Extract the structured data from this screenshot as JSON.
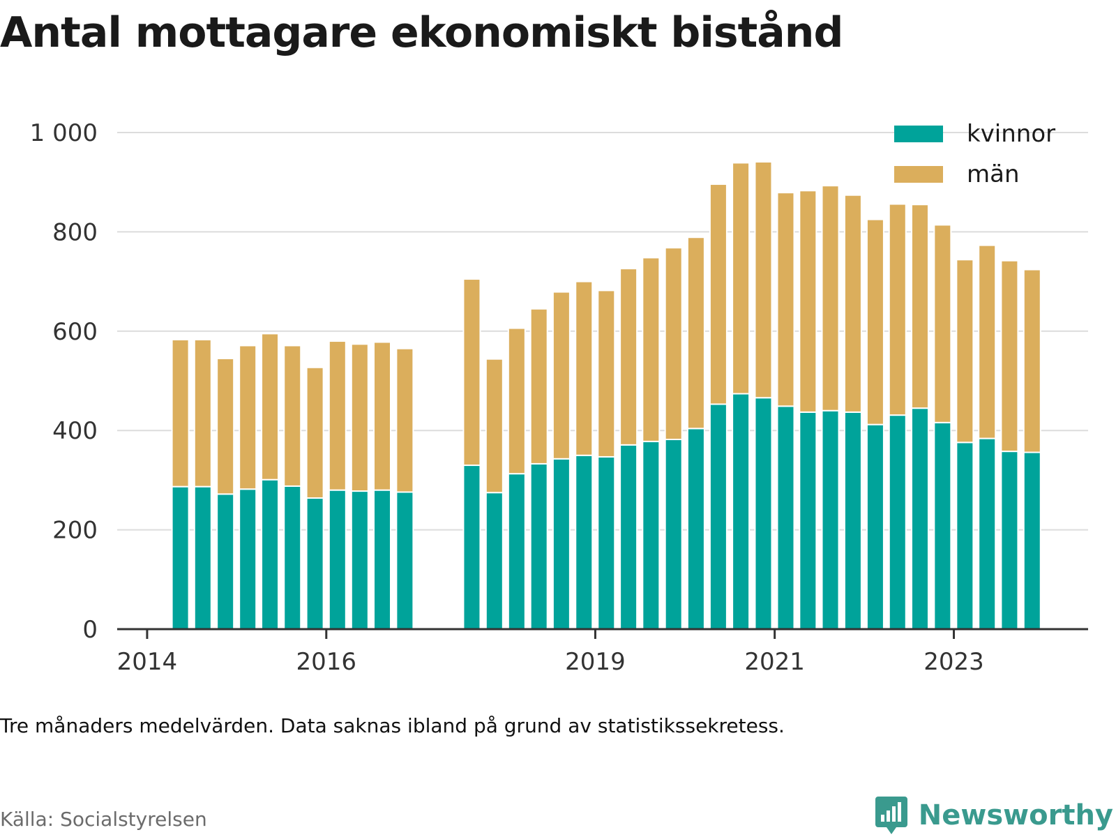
{
  "title": "Antal mottagare ekonomiskt bistånd",
  "note": "Tre månaders medelvärden. Data saknas ibland på grund av statistikssekretess.",
  "source": "Källa: Socialstyrelsen",
  "brand": "Newsworthy",
  "colors": {
    "kvinnor": "#00a39a",
    "man": "#dbae5c",
    "grid": "#dcdcdc",
    "axis": "#333333"
  },
  "chart_data": {
    "type": "bar",
    "stacked": true,
    "title": "Antal mottagare ekonomiskt bistånd",
    "ylim": [
      0,
      1000
    ],
    "yticks": [
      0,
      200,
      400,
      600,
      800,
      1000
    ],
    "ytick_labels": [
      "0",
      "200",
      "400",
      "600",
      "800",
      "1 000"
    ],
    "xlim": [
      "2013-09-01",
      "2024-07-01"
    ],
    "xticks": [
      {
        "date": "2014-01-01",
        "label": "2014"
      },
      {
        "date": "2016-01-01",
        "label": "2016"
      },
      {
        "date": "2019-01-01",
        "label": "2019"
      },
      {
        "date": "2021-01-01",
        "label": "2021"
      },
      {
        "date": "2023-01-01",
        "label": "2023"
      }
    ],
    "legend_position": "top-right",
    "categories": [
      "2014-04",
      "2014-07",
      "2014-10",
      "2015-01",
      "2015-04",
      "2015-07",
      "2015-10",
      "2016-01",
      "2016-04",
      "2016-07",
      "2016-10",
      "2017-07",
      "2017-10",
      "2018-01",
      "2018-04",
      "2018-07",
      "2018-10",
      "2019-01",
      "2019-04",
      "2019-07",
      "2019-10",
      "2020-01",
      "2020-04",
      "2020-07",
      "2020-10",
      "2021-01",
      "2021-04",
      "2021-07",
      "2021-10",
      "2022-01",
      "2022-04",
      "2022-07",
      "2022-10",
      "2023-01",
      "2023-04",
      "2023-07",
      "2023-10"
    ],
    "series": [
      {
        "name": "kvinnor",
        "values": [
          287,
          287,
          272,
          282,
          301,
          288,
          264,
          280,
          278,
          280,
          276,
          330,
          275,
          313,
          333,
          343,
          350,
          347,
          371,
          378,
          382,
          404,
          453,
          474,
          466,
          449,
          437,
          440,
          437,
          412,
          431,
          445,
          416,
          376,
          384,
          358,
          356
        ]
      },
      {
        "name": "män",
        "values": [
          296,
          296,
          273,
          289,
          294,
          283,
          263,
          300,
          296,
          298,
          289,
          375,
          269,
          293,
          312,
          336,
          350,
          335,
          355,
          370,
          386,
          385,
          443,
          465,
          475,
          430,
          446,
          453,
          437,
          413,
          425,
          410,
          398,
          368,
          389,
          384,
          368
        ]
      }
    ]
  }
}
